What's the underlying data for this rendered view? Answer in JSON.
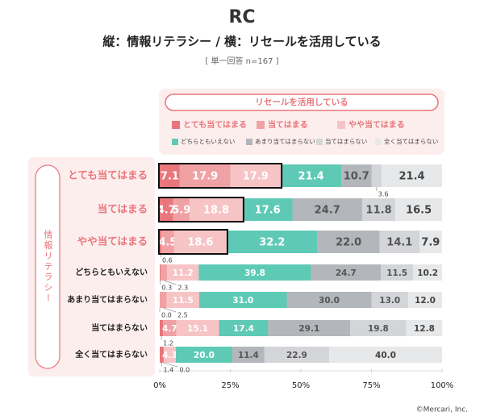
{
  "chart_data": {
    "type": "stacked-bar-horizontal",
    "logo": "RC",
    "title": "縦：情報リテラシー / 横：リセールを活用している",
    "subtitle": "[ 単一回答 n=167 ]",
    "legend_title": "リセールを活用している",
    "y_group_label": "情報リテラシー",
    "credit": "©Mercari, Inc.",
    "categories": [
      "とても当てはまる",
      "当てはまる",
      "やや当てはまる",
      "どちらともいえない",
      "あまり当てはまらない",
      "当てはまらない",
      "全く当てはまらない"
    ],
    "series": [
      {
        "name": "とても当てはまる",
        "color": "#e8767a",
        "values": [
          7.1,
          4.7,
          0.6,
          0.3,
          0.0,
          1.2,
          1.4
        ],
        "value_labels": [
          "7.1",
          "4.7",
          "0.6",
          "0.3",
          "0.0",
          "1.2",
          "1.4"
        ]
      },
      {
        "name": "当てはまる",
        "color": "#f0a1a4",
        "values": [
          17.9,
          5.9,
          4.5,
          2.3,
          2.5,
          4.7,
          0.0
        ],
        "value_labels": [
          "17.9",
          "5.9",
          "4.5",
          "2.3",
          "2.5",
          "4.7",
          "0.0"
        ]
      },
      {
        "name": "やや当てはまる",
        "color": "#f7c4c6",
        "values": [
          17.9,
          18.8,
          18.6,
          11.2,
          11.5,
          15.1,
          4.3
        ],
        "value_labels": [
          "17.9",
          "18.8",
          "18.6",
          "11.2",
          "11.5",
          "15.1",
          "4.3"
        ]
      },
      {
        "name": "どちらともいえない",
        "color": "#5ecab6",
        "values": [
          21.4,
          17.6,
          32.2,
          39.8,
          31.0,
          17.4,
          20.0
        ],
        "value_labels": [
          "21.4",
          "17.6",
          "32.2",
          "39.8",
          "31.0",
          "17.4",
          "20.0"
        ]
      },
      {
        "name": "あまり当てはまらない",
        "color": "#b3b6ba",
        "values": [
          10.7,
          24.7,
          22.0,
          24.7,
          30.0,
          29.1,
          11.4
        ],
        "value_labels": [
          "10.7",
          "24.7",
          "22.0",
          "24.7",
          "30.0",
          "29.1",
          "11.4"
        ]
      },
      {
        "name": "当てはまらない",
        "color": "#d3d5d8",
        "values": [
          3.6,
          11.8,
          14.1,
          11.5,
          13.0,
          19.8,
          22.9
        ],
        "value_labels": [
          "3.6",
          "11.8",
          "14.1",
          "11.5",
          "13.0",
          "19.8",
          "22.9"
        ]
      },
      {
        "name": "全く当てはまらない",
        "color": "#e7e8e9",
        "values": [
          21.4,
          16.5,
          7.9,
          10.2,
          12.0,
          12.8,
          40.0
        ],
        "value_labels": [
          "21.4",
          "16.5",
          "7.9",
          "10.2",
          "12.0",
          "12.8",
          "40.0"
        ]
      }
    ],
    "xlim": [
      0,
      100
    ],
    "xticks": [
      {
        "value": 0,
        "label": "0%"
      },
      {
        "value": 25,
        "label": "25%"
      },
      {
        "value": 50,
        "label": "50%"
      },
      {
        "value": 75,
        "label": "75%"
      },
      {
        "value": 100,
        "label": "100%"
      }
    ]
  }
}
